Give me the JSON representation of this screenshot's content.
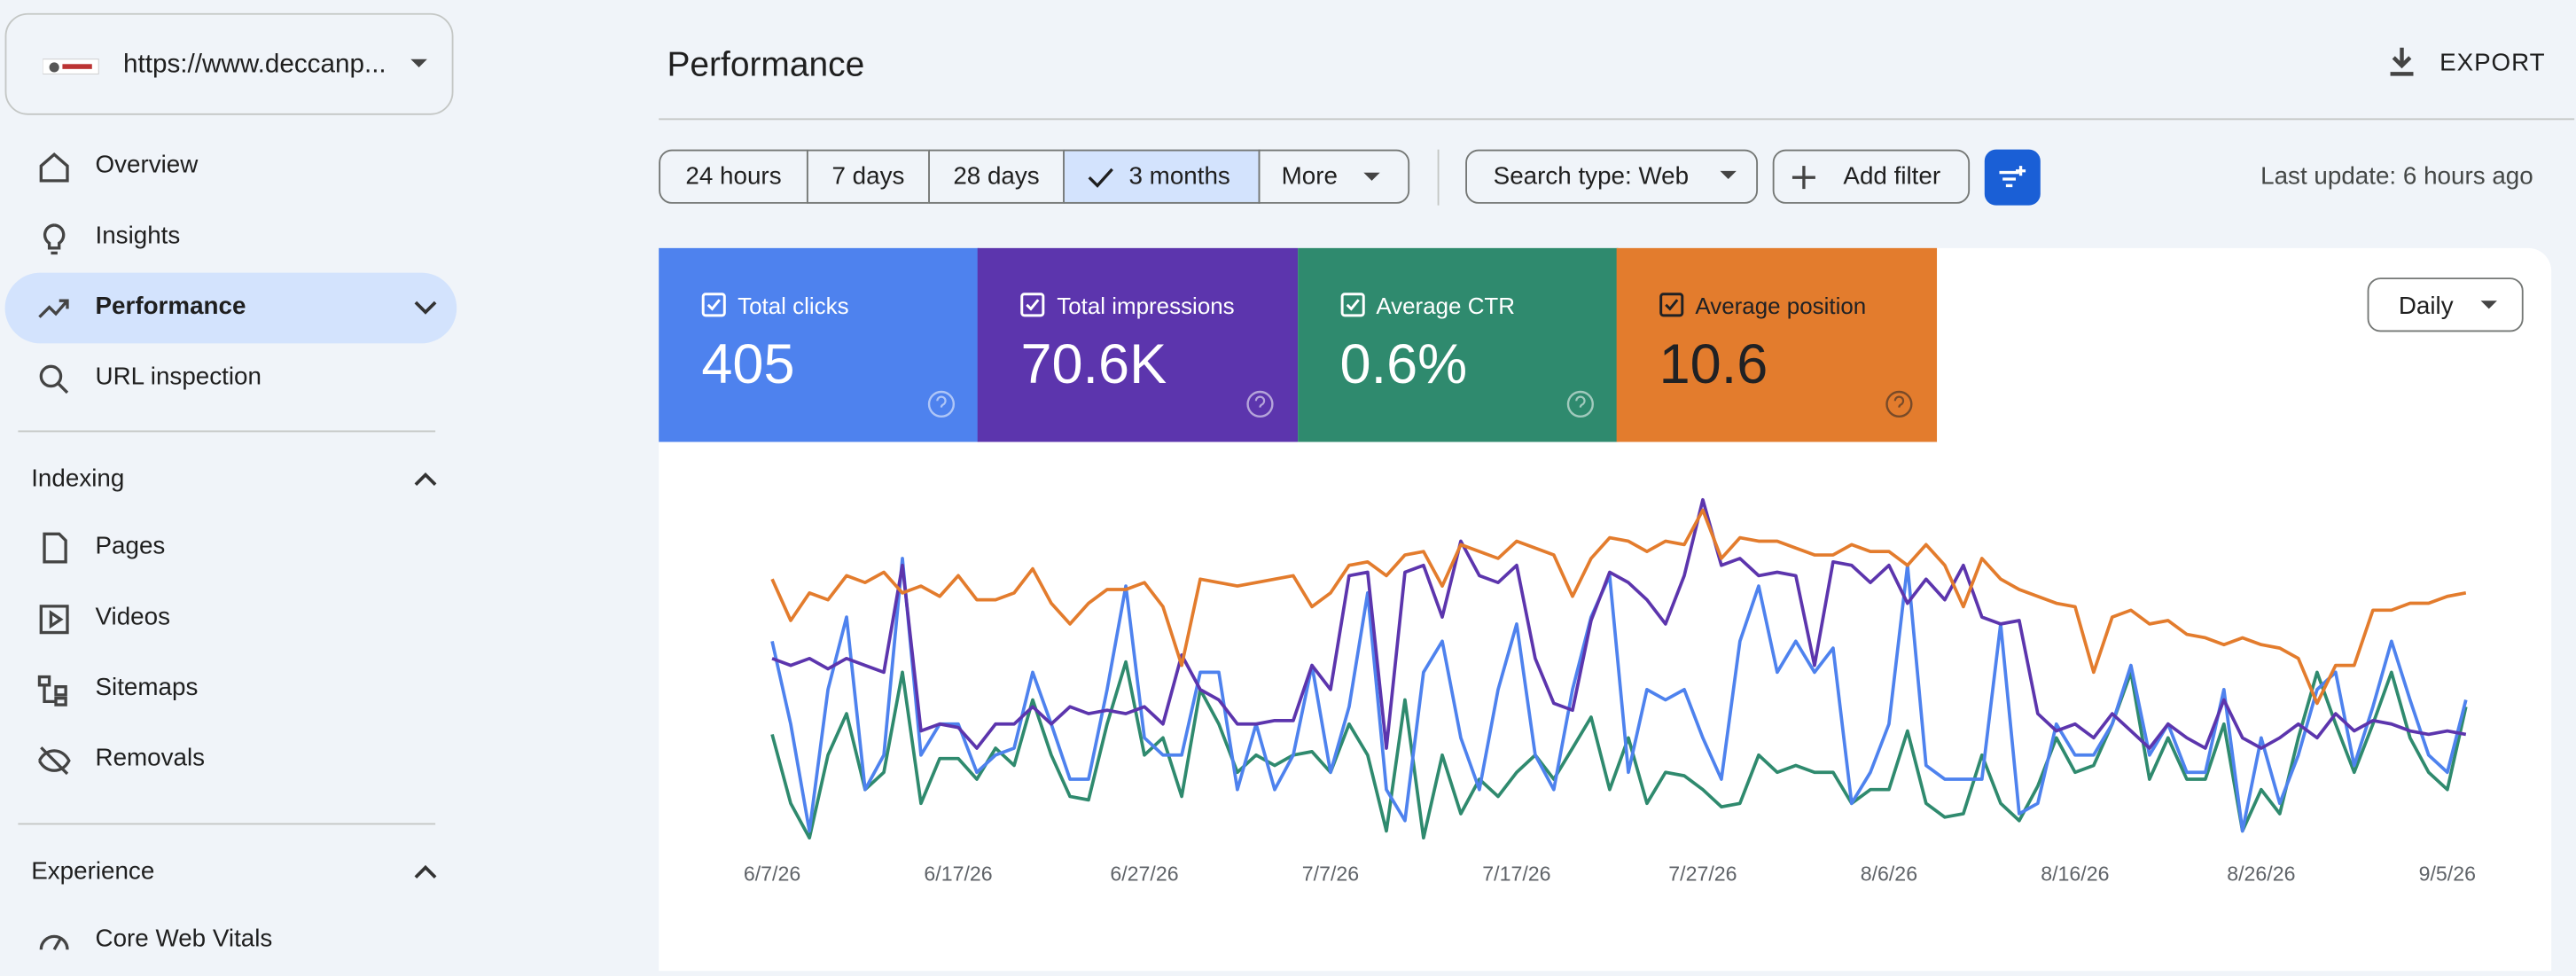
{
  "site": "https://www.deccanp...",
  "nav": [
    "Overview",
    "Insights",
    "Performance",
    "URL inspection"
  ],
  "sections": [
    {
      "title": "Indexing",
      "items": [
        "Pages",
        "Videos",
        "Sitemaps",
        "Removals"
      ]
    },
    {
      "title": "Experience",
      "items": [
        "Core Web Vitals"
      ]
    }
  ],
  "header": {
    "title": "Performance",
    "export": "EXPORT"
  },
  "filters": {
    "ranges": [
      "24 hours",
      "7 days",
      "28 days",
      "3 months",
      "More"
    ],
    "search_type": "Search type: Web",
    "add_filter": "Add filter",
    "last_update": "Last update: 6 hours ago"
  },
  "granularity": "Daily",
  "chart_data": {
    "type": "line",
    "xlim": [
      0,
      91
    ],
    "ylim": [
      0,
      100
    ],
    "xticks": [
      {
        "value": 0,
        "label": "6/7/26"
      },
      {
        "value": 10,
        "label": "6/17/26"
      },
      {
        "value": 20,
        "label": "6/27/26"
      },
      {
        "value": 30,
        "label": "7/7/26"
      },
      {
        "value": 40,
        "label": "7/17/26"
      },
      {
        "value": 50,
        "label": "7/27/26"
      },
      {
        "value": 60,
        "label": "8/6/26"
      },
      {
        "value": 70,
        "label": "8/16/26"
      },
      {
        "value": 80,
        "label": "8/26/26"
      },
      {
        "value": 90,
        "label": "9/5/26"
      }
    ],
    "series": [
      {
        "name": "Total clicks",
        "summary": "405",
        "color": "#4e82ee",
        "values": [
          57,
          33,
          2,
          43,
          64,
          14,
          24,
          81,
          24,
          33,
          33,
          19,
          24,
          26,
          48,
          33,
          17,
          17,
          43,
          73,
          29,
          24,
          24,
          48,
          48,
          14,
          33,
          14,
          24,
          50,
          19,
          38,
          71,
          14,
          5,
          48,
          57,
          29,
          14,
          43,
          62,
          24,
          14,
          43,
          64,
          76,
          19,
          43,
          40,
          43,
          29,
          17,
          57,
          73,
          48,
          57,
          48,
          55,
          10,
          19,
          33,
          79,
          21,
          17,
          17,
          17,
          62,
          7,
          10,
          33,
          24,
          24,
          33,
          50,
          24,
          33,
          19,
          19,
          43,
          2,
          29,
          10,
          24,
          43,
          48,
          21,
          38,
          57,
          40,
          24,
          19,
          40
        ]
      },
      {
        "name": "Total impressions",
        "summary": "70.6K",
        "color": "#5c35ad",
        "values": [
          52,
          50,
          52,
          49,
          52,
          50,
          48,
          79,
          31,
          33,
          32,
          26,
          33,
          33,
          38,
          33,
          38,
          36,
          37,
          36,
          38,
          33,
          53,
          43,
          40,
          33,
          33,
          34,
          34,
          50,
          43,
          76,
          77,
          26,
          77,
          79,
          64,
          86,
          76,
          74,
          79,
          52,
          39,
          37,
          63,
          77,
          74,
          69,
          62,
          76,
          98,
          79,
          81,
          76,
          77,
          76,
          50,
          80,
          79,
          74,
          79,
          68,
          75,
          69,
          79,
          64,
          62,
          63,
          36,
          31,
          33,
          29,
          36,
          31,
          26,
          33,
          29,
          26,
          40,
          29,
          26,
          29,
          33,
          29,
          36,
          31,
          34,
          33,
          31,
          30,
          31,
          30
        ]
      },
      {
        "name": "Average CTR",
        "summary": "0.6%",
        "color": "#2f8a6e",
        "values": [
          30,
          10,
          0,
          24,
          36,
          14,
          19,
          48,
          10,
          23,
          23,
          17,
          26,
          21,
          40,
          24,
          12,
          11,
          33,
          51,
          24,
          29,
          12,
          43,
          33,
          19,
          24,
          21,
          24,
          25,
          19,
          33,
          24,
          2,
          40,
          0,
          24,
          7,
          17,
          12,
          19,
          24,
          17,
          26,
          35,
          14,
          29,
          10,
          19,
          18,
          14,
          9,
          10,
          24,
          19,
          21,
          19,
          19,
          10,
          14,
          14,
          31,
          10,
          6,
          7,
          24,
          10,
          5,
          15,
          29,
          19,
          21,
          33,
          48,
          17,
          29,
          17,
          17,
          33,
          2,
          14,
          7,
          29,
          48,
          33,
          19,
          33,
          48,
          29,
          19,
          14,
          38
        ]
      },
      {
        "name": "Average position",
        "summary": "10.6",
        "color": "#e37c2d",
        "values": [
          75,
          63,
          71,
          69,
          76,
          74,
          77,
          71,
          73,
          70,
          76,
          69,
          69,
          71,
          78,
          68,
          62,
          68,
          72,
          72,
          74,
          67,
          50,
          75,
          74,
          73,
          74,
          75,
          76,
          67,
          71,
          79,
          80,
          76,
          82,
          83,
          73,
          85,
          83,
          81,
          86,
          84,
          82,
          70,
          81,
          87,
          86,
          83,
          86,
          85,
          95,
          81,
          87,
          86,
          86,
          84,
          82,
          82,
          85,
          83,
          83,
          79,
          85,
          79,
          67,
          81,
          75,
          72,
          70,
          68,
          67,
          48,
          64,
          66,
          62,
          63,
          59,
          58,
          56,
          58,
          56,
          55,
          52,
          39,
          50,
          50,
          66,
          66,
          68,
          68,
          70,
          71
        ]
      }
    ]
  }
}
